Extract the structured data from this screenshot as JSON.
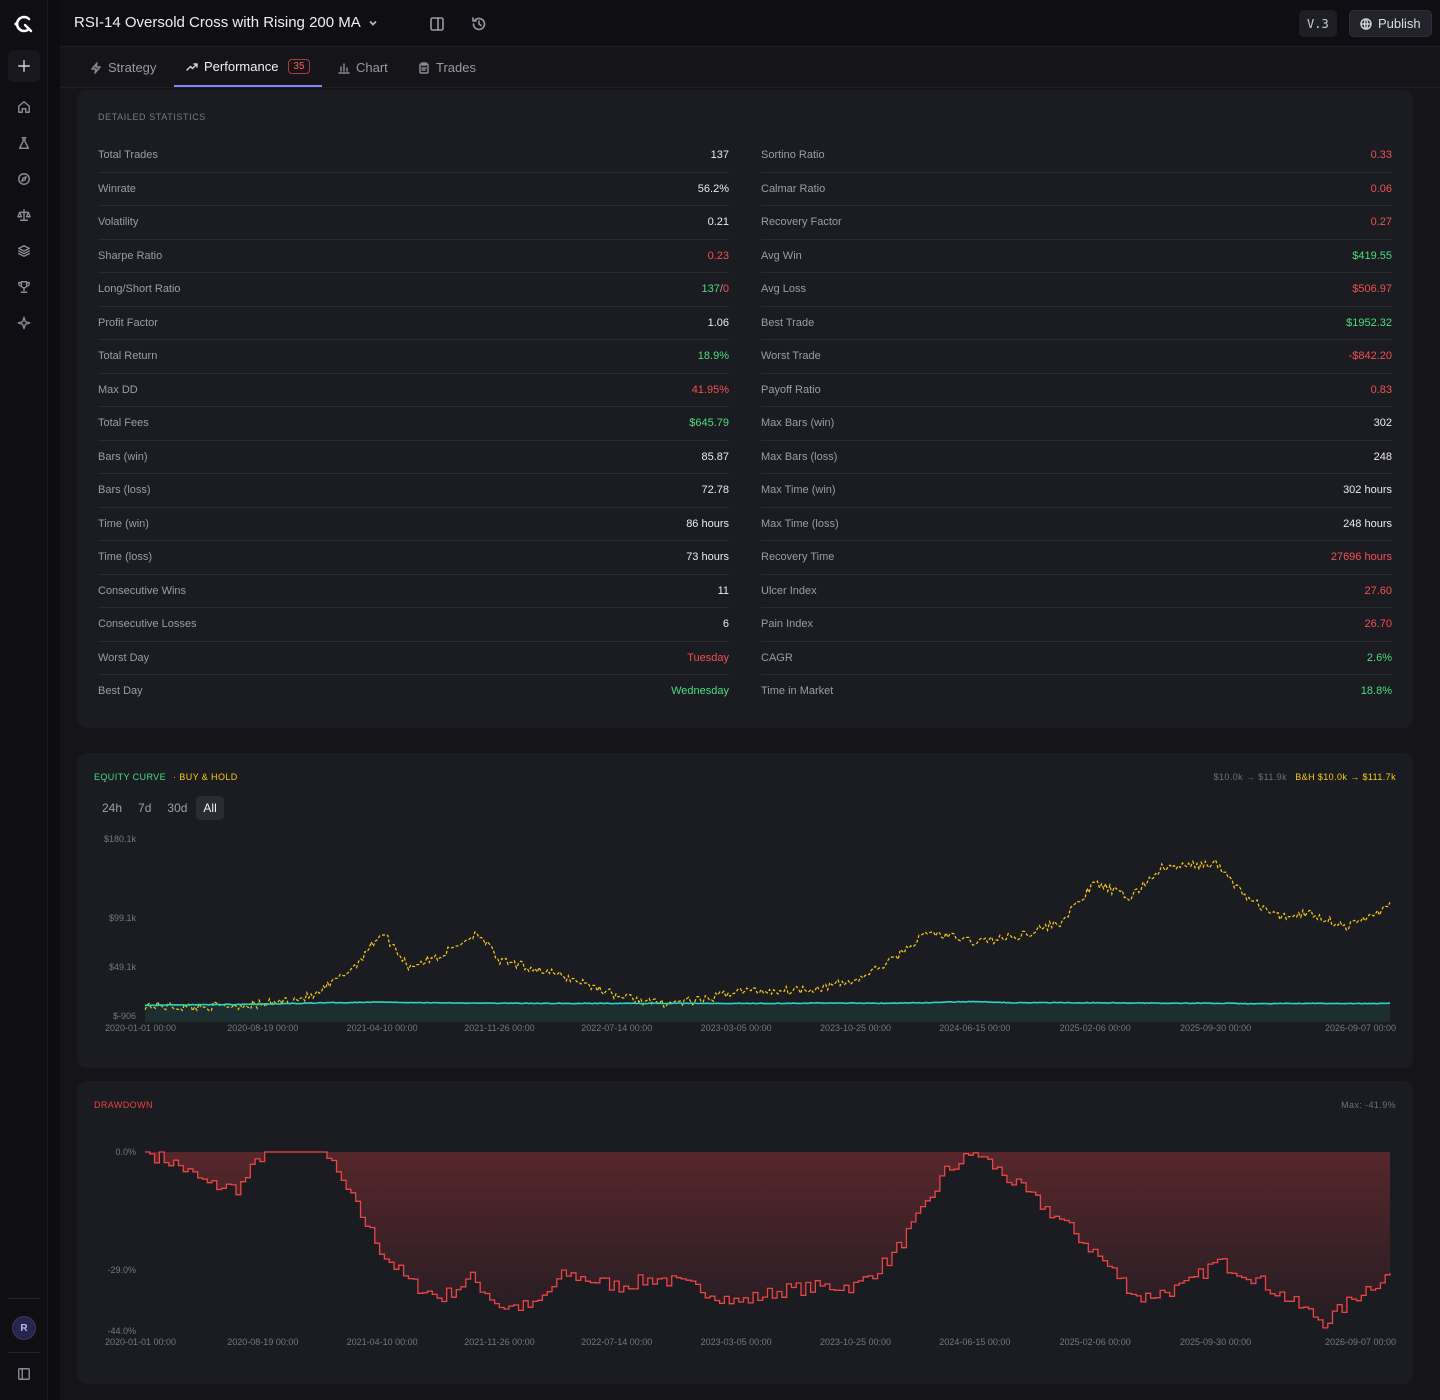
{
  "app": {
    "title": "RSI-14 Oversold Cross with Rising 200 MA",
    "version": "V.3",
    "publish_label": "Publish",
    "avatar_initial": "R"
  },
  "tabs": [
    {
      "label": "Strategy",
      "icon": "zap-icon"
    },
    {
      "label": "Performance",
      "icon": "trend-icon",
      "badge": "35"
    },
    {
      "label": "Chart",
      "icon": "bar-chart-icon"
    },
    {
      "label": "Trades",
      "icon": "clipboard-icon"
    }
  ],
  "stats": {
    "title": "DETAILED STATISTICS",
    "left": [
      {
        "label": "Total Trades",
        "value": "137",
        "tone": "neutral"
      },
      {
        "label": "Winrate",
        "value": "56.2%",
        "tone": "neutral"
      },
      {
        "label": "Volatility",
        "value": "0.21",
        "tone": "neutral"
      },
      {
        "label": "Sharpe Ratio",
        "value": "0.23",
        "tone": "red"
      },
      {
        "label": "Long/Short Ratio",
        "value_long": "137",
        "value_sep": "/",
        "value_short": "0",
        "tone": "split"
      },
      {
        "label": "Profit Factor",
        "value": "1.06",
        "tone": "neutral"
      },
      {
        "label": "Total Return",
        "value": "18.9%",
        "tone": "green"
      },
      {
        "label": "Max DD",
        "value": "41.95%",
        "tone": "red"
      },
      {
        "label": "Total Fees",
        "value": "$645.79",
        "tone": "green"
      },
      {
        "label": "Bars (win)",
        "value": "85.87",
        "tone": "neutral"
      },
      {
        "label": "Bars (loss)",
        "value": "72.78",
        "tone": "neutral"
      },
      {
        "label": "Time (win)",
        "value": "86 hours",
        "tone": "neutral"
      },
      {
        "label": "Time (loss)",
        "value": "73 hours",
        "tone": "neutral"
      },
      {
        "label": "Consecutive Wins",
        "value": "11",
        "tone": "neutral"
      },
      {
        "label": "Consecutive Losses",
        "value": "6",
        "tone": "neutral"
      },
      {
        "label": "Worst Day",
        "value": "Tuesday",
        "tone": "red"
      },
      {
        "label": "Best Day",
        "value": "Wednesday",
        "tone": "green"
      }
    ],
    "right": [
      {
        "label": "Sortino Ratio",
        "value": "0.33",
        "tone": "red"
      },
      {
        "label": "Calmar Ratio",
        "value": "0.06",
        "tone": "red"
      },
      {
        "label": "Recovery Factor",
        "value": "0.27",
        "tone": "red"
      },
      {
        "label": "Avg Win",
        "value": "$419.55",
        "tone": "green"
      },
      {
        "label": "Avg Loss",
        "value": "$506.97",
        "tone": "red"
      },
      {
        "label": "Best Trade",
        "value": "$1952.32",
        "tone": "green"
      },
      {
        "label": "Worst Trade",
        "value": "-$842.20",
        "tone": "red"
      },
      {
        "label": "Payoff Ratio",
        "value": "0.83",
        "tone": "red"
      },
      {
        "label": "Max Bars (win)",
        "value": "302",
        "tone": "neutral"
      },
      {
        "label": "Max Bars (loss)",
        "value": "248",
        "tone": "neutral"
      },
      {
        "label": "Max Time (win)",
        "value": "302 hours",
        "tone": "neutral"
      },
      {
        "label": "Max Time (loss)",
        "value": "248 hours",
        "tone": "neutral"
      },
      {
        "label": "Recovery Time",
        "value": "27696 hours",
        "tone": "red"
      },
      {
        "label": "Ulcer Index",
        "value": "27.60",
        "tone": "red"
      },
      {
        "label": "Pain Index",
        "value": "26.70",
        "tone": "red"
      },
      {
        "label": "CAGR",
        "value": "2.6%",
        "tone": "green"
      },
      {
        "label": "Time in Market",
        "value": "18.8%",
        "tone": "green"
      }
    ]
  },
  "equity": {
    "title": "EQUITY CURVE",
    "bh_label": "· BUY & HOLD",
    "summary_strategy": "$10.0k → $11.9k",
    "summary_bh": "B&H $10.0k → $111.7k",
    "ranges": [
      "24h",
      "7d",
      "30d",
      "All"
    ],
    "active_range": "All"
  },
  "drawdown": {
    "title": "DRAWDOWN",
    "max_label": "Max: -41.9%"
  },
  "colors": {
    "strategy": "#2dd4bf",
    "buy_hold": "#facc15",
    "drawdown": "#ef4444",
    "accent": "#7f86ff"
  },
  "chart_data": [
    {
      "type": "line",
      "title": "EQUITY CURVE",
      "x_ticks": [
        "2020-01-01 00:00",
        "2020-08-19 00:00",
        "2021-04-10 00:00",
        "2021-11-26 00:00",
        "2022-07-14 00:00",
        "2023-03-05 00:00",
        "2023-10-25 00:00",
        "2024-06-15 00:00",
        "2025-02-06 00:00",
        "2025-09-30 00:00",
        "2026-09-07 00:00"
      ],
      "y_ticks": [
        "$180.1k",
        "$99.1k",
        "$49.1k",
        "$-906"
      ],
      "ylim": [
        -906,
        180100
      ],
      "x": [
        "2020-01-01",
        "2020-04-01",
        "2020-08-19",
        "2020-12-01",
        "2021-02-15",
        "2021-04-10",
        "2021-06-01",
        "2021-08-01",
        "2021-10-15",
        "2021-11-26",
        "2022-02-01",
        "2022-05-01",
        "2022-07-14",
        "2022-10-01",
        "2023-01-01",
        "2023-03-05",
        "2023-06-01",
        "2023-08-15",
        "2023-10-25",
        "2024-01-01",
        "2024-03-15",
        "2024-06-15",
        "2024-09-01",
        "2024-12-01",
        "2025-02-06",
        "2025-04-15",
        "2025-06-15",
        "2025-09-30",
        "2025-12-01",
        "2026-02-01",
        "2026-04-01",
        "2026-06-15",
        "2026-09-07"
      ],
      "series": [
        {
          "name": "BUY & HOLD",
          "values": [
            10000,
            8000,
            11000,
            20000,
            50000,
            85000,
            50000,
            60000,
            85000,
            55000,
            48000,
            35000,
            20000,
            12000,
            15000,
            25000,
            25000,
            28000,
            35000,
            55000,
            85000,
            75000,
            80000,
            95000,
            135000,
            120000,
            150000,
            155000,
            120000,
            100000,
            105000,
            90000,
            111700
          ]
        },
        {
          "name": "EQUITY CURVE",
          "values": [
            10000,
            10500,
            11200,
            12500,
            13000,
            13500,
            12800,
            12600,
            12400,
            12200,
            12000,
            12000,
            12000,
            12100,
            12200,
            12000,
            12100,
            12400,
            12300,
            12200,
            12700,
            14000,
            12600,
            12800,
            12600,
            12400,
            12300,
            12200,
            11700,
            11800,
            12000,
            11800,
            11900
          ]
        }
      ]
    },
    {
      "type": "area",
      "title": "DRAWDOWN",
      "x_ticks": [
        "2020-01-01 00:00",
        "2020-08-19 00:00",
        "2021-04-10 00:00",
        "2021-11-26 00:00",
        "2022-07-14 00:00",
        "2023-03-05 00:00",
        "2023-10-25 00:00",
        "2024-06-15 00:00",
        "2025-02-06 00:00",
        "2025-09-30 00:00",
        "2026-09-07 00:00"
      ],
      "y_ticks": [
        "0.0%",
        "-29.0%",
        "-44.0%"
      ],
      "ylim": [
        -44,
        0
      ],
      "x": [
        "2020-01-01",
        "2020-03-01",
        "2020-05-01",
        "2020-07-01",
        "2020-08-19",
        "2020-10-15",
        "2020-12-15",
        "2021-02-01",
        "2021-04-10",
        "2021-06-01",
        "2021-08-01",
        "2021-10-01",
        "2021-11-26",
        "2022-02-01",
        "2022-04-01",
        "2022-07-14",
        "2022-10-01",
        "2023-01-01",
        "2023-03-05",
        "2023-06-01",
        "2023-09-01",
        "2023-10-25",
        "2024-01-01",
        "2024-03-01",
        "2024-04-15",
        "2024-06-15",
        "2024-09-01",
        "2024-12-01",
        "2025-02-06",
        "2025-05-01",
        "2025-08-01",
        "2025-09-30",
        "2025-12-01",
        "2026-02-15",
        "2026-05-01",
        "2026-07-15",
        "2026-09-07"
      ],
      "series": [
        {
          "name": "DRAWDOWN",
          "values": [
            0,
            -3,
            -8,
            -9,
            0,
            0,
            0,
            -10,
            -25,
            -32,
            -36,
            -31,
            -38,
            -38,
            -30,
            -33,
            -31,
            -34,
            -37,
            -34,
            -33,
            -33,
            -26,
            -15,
            -5,
            0,
            -8,
            -17,
            -25,
            -36,
            -33,
            -27,
            -30,
            -36,
            -41.9,
            -34,
            -30
          ]
        }
      ]
    }
  ]
}
